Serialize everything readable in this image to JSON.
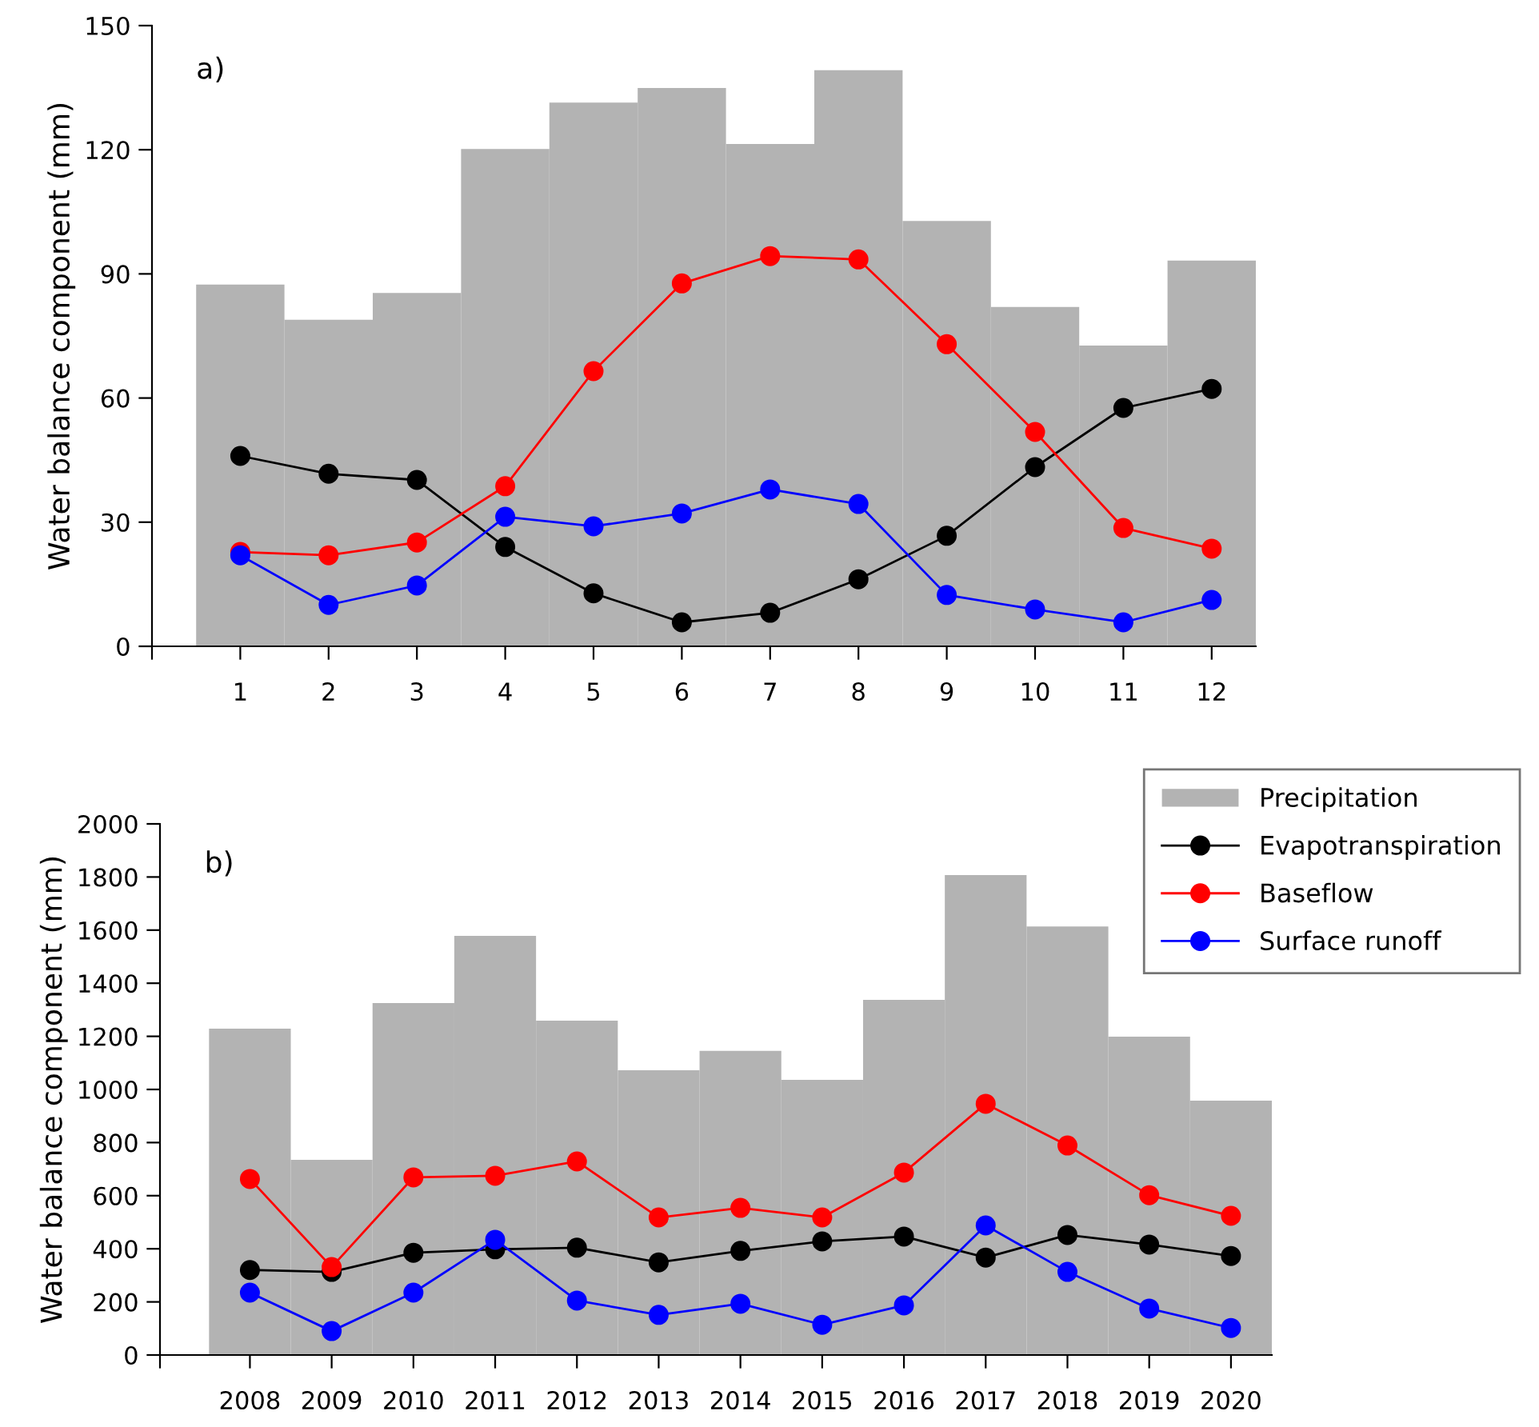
{
  "chart_data": [
    {
      "type": "bar",
      "ylabel": "Water balance component (mm)",
      "annotations": [
        "a)"
      ],
      "x": [
        1,
        2,
        3,
        4,
        5,
        6,
        7,
        8,
        9,
        10,
        11,
        12
      ],
      "xlim": [
        0,
        12.5
      ],
      "xticks": [
        {
          "value": 0,
          "label": null
        },
        1,
        2,
        3,
        4,
        5,
        6,
        7,
        8,
        9,
        10,
        11,
        12
      ],
      "ylim": [
        0,
        150
      ],
      "yticks": [
        0,
        30,
        60,
        90,
        120,
        150
      ],
      "grid": false,
      "legend": false,
      "series": [
        {
          "color": "#b3b3b3",
          "values": [
            87.4,
            78.9,
            85.4,
            120.2,
            131.4,
            134.9,
            121.4,
            139.2,
            102.8,
            82,
            72.7,
            93.2
          ]
        },
        {
          "type": "line",
          "marker": "circle",
          "color": "#000000",
          "values": [
            46,
            41.7,
            40.2,
            24,
            12.8,
            5.8,
            8.1,
            16.2,
            26.7,
            43.3,
            57.6,
            62.2
          ]
        },
        {
          "type": "line",
          "marker": "circle",
          "color": "#ff0000",
          "values": [
            22.8,
            22,
            25.1,
            38.7,
            66.5,
            87.7,
            94.3,
            93.5,
            73,
            51.8,
            28.6,
            23.6
          ]
        },
        {
          "type": "line",
          "marker": "circle",
          "color": "#0000ff",
          "values": [
            22,
            10,
            14.7,
            31.3,
            29,
            32.1,
            37.9,
            34.4,
            12.4,
            8.9,
            5.8,
            11.2
          ]
        }
      ]
    },
    {
      "type": "bar",
      "ylabel": "Water balance component (mm)",
      "annotations": [
        "b)"
      ],
      "x": [
        2008,
        2009,
        2010,
        2011,
        2012,
        2013,
        2014,
        2015,
        2016,
        2017,
        2018,
        2019,
        2020
      ],
      "xlim": [
        2006.9,
        2020.5
      ],
      "xticks": [
        {
          "value": 2006.9,
          "label": null
        },
        2008,
        2009,
        2010,
        2011,
        2012,
        2013,
        2014,
        2015,
        2016,
        2017,
        2018,
        2019,
        2020
      ],
      "ylim": [
        0,
        2000
      ],
      "yticks": [
        0,
        200,
        400,
        600,
        800,
        1000,
        1200,
        1400,
        1600,
        1800,
        2000
      ],
      "grid": false,
      "legend": "top right",
      "series": [
        {
          "name": "Precipitation",
          "color": "#b3b3b3",
          "values": [
            1229,
            735,
            1325,
            1578,
            1259,
            1072,
            1145,
            1036,
            1337,
            1807,
            1614,
            1199,
            958
          ]
        },
        {
          "type": "line",
          "marker": "circle",
          "name": "Evapotranspiration",
          "color": "#000000",
          "values": [
            320,
            313,
            385,
            398,
            404,
            349,
            392,
            428,
            446,
            367,
            452,
            416,
            373
          ]
        },
        {
          "type": "line",
          "marker": "circle",
          "name": "Baseflow",
          "color": "#ff0000",
          "values": [
            663,
            331,
            669,
            675,
            729,
            518,
            554,
            518,
            687,
            946,
            789,
            602,
            524
          ]
        },
        {
          "type": "line",
          "marker": "circle",
          "name": "Surface runoff",
          "color": "#0000ff",
          "values": [
            235,
            90,
            235,
            434,
            205,
            151,
            193,
            114,
            187,
            488,
            313,
            175,
            102
          ]
        }
      ]
    }
  ]
}
